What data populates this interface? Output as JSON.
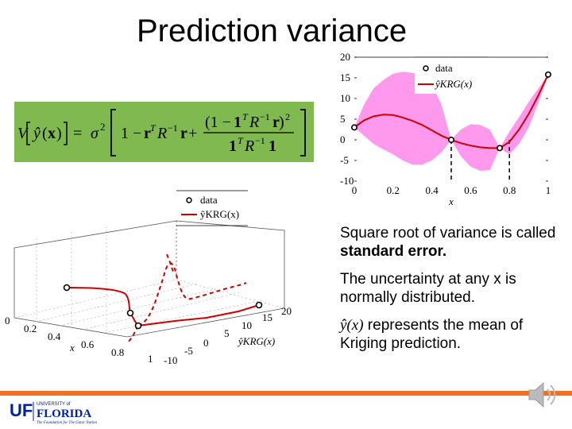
{
  "slide": {
    "title": "Prediction variance",
    "formula_label": "V[ŷ(x)] = σ² [1 − rᵀR⁻¹r + (1 − 1ᵀR⁻¹r)² / 1ᵀR⁻¹1]"
  },
  "bullets": [
    {
      "pre": "Square root of variance is called ",
      "bold": "standard error.",
      "post": ""
    },
    {
      "pre": "The uncertainty at any x is normally distributed.",
      "bold": "",
      "post": ""
    },
    {
      "math": "ŷ(x)",
      "post": " represents the mean of Kriging prediction."
    }
  ],
  "footer": {
    "logo_uf": "UF",
    "logo_univ": "UNIVERSITY of",
    "logo_florida": "FLORIDA",
    "logo_tagline": "The Foundation for The Gator Nation",
    "bar_color": "#f37021",
    "icon": "speaker-icon"
  },
  "chart_data": [
    {
      "type": "line",
      "title": "",
      "xlabel": "x",
      "ylabel": "",
      "xlim": [
        0,
        1
      ],
      "ylim": [
        -10,
        20
      ],
      "x_ticks": [
        "0",
        "0.2",
        "0.4",
        "0.6",
        "0.8",
        "1"
      ],
      "y_ticks": [
        "20",
        "15",
        "10",
        "5",
        "0",
        "-5",
        "-10"
      ],
      "legend_position": "top-right",
      "legend": [
        {
          "label": "data",
          "marker": "circle"
        },
        {
          "label": "ŷKRG(x)",
          "marker": "line",
          "color": "#d00000"
        }
      ],
      "data_points": {
        "x": [
          0,
          0.5,
          0.75,
          1
        ],
        "y": [
          3,
          0,
          -2,
          15.8
        ]
      },
      "series": [
        {
          "name": "ŷKRG(x)",
          "color": "#d00000",
          "x": [
            0,
            0.05,
            0.1,
            0.15,
            0.2,
            0.25,
            0.3,
            0.35,
            0.4,
            0.45,
            0.5,
            0.55,
            0.6,
            0.65,
            0.7,
            0.75,
            0.8,
            0.85,
            0.9,
            0.95,
            1
          ],
          "y": [
            3,
            4.7,
            5.7,
            6.1,
            6.0,
            5.4,
            4.6,
            3.6,
            2.3,
            1.0,
            0,
            -0.8,
            -1.4,
            -1.8,
            -2.0,
            -2.0,
            -0.5,
            2.5,
            6.3,
            10.8,
            15.8
          ]
        }
      ],
      "band": {
        "color": "#ff99ee",
        "x": [
          0,
          0.05,
          0.1,
          0.15,
          0.2,
          0.25,
          0.3,
          0.35,
          0.4,
          0.45,
          0.5,
          0.55,
          0.6,
          0.65,
          0.7,
          0.75,
          0.8,
          0.85,
          0.9,
          0.95,
          1
        ],
        "upper": [
          3,
          8.5,
          12.5,
          14.5,
          16,
          16.5,
          16.2,
          15.5,
          13.5,
          8.5,
          0,
          2.5,
          3.8,
          3.6,
          2.5,
          -2.0,
          2.0,
          5.5,
          9.2,
          12.5,
          15.8
        ],
        "lower": [
          3,
          1.0,
          -1.0,
          -2.3,
          -3.5,
          -5.0,
          -6.0,
          -6.0,
          -5.0,
          -3.0,
          0,
          -4.0,
          -6.5,
          -7.5,
          -7.3,
          -2.0,
          -3.5,
          -1.0,
          3.0,
          9.0,
          15.8
        ]
      },
      "dashed_markers": [
        0.5,
        0.8
      ]
    },
    {
      "type": "line",
      "title": "",
      "xlabel": "x",
      "ylabel": "ŷKRG(x)",
      "x_ticks": [
        "0",
        "0.2",
        "0.4",
        "0.6",
        "0.8",
        "1"
      ],
      "y_ticks": [
        "20",
        "15",
        "10",
        "5",
        "0",
        "-5",
        "-10"
      ],
      "legend_position": "top-right",
      "legend": [
        {
          "label": "data",
          "marker": "circle"
        },
        {
          "label": "ŷKRG(x)",
          "marker": "line",
          "color": "#d00000"
        }
      ]
    }
  ]
}
